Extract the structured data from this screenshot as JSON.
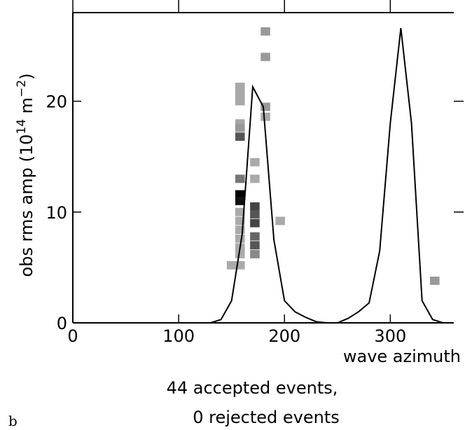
{
  "chart_data": {
    "type": "scatter",
    "title": "",
    "xlabel": "wave azimuth",
    "ylabel_main": "obs rms amp (10",
    "ylabel_exp": "14",
    "ylabel_unit": " m",
    "ylabel_unit_exp": "−2",
    "ylabel_close": ")",
    "xlim": [
      0,
      360
    ],
    "ylim": [
      0,
      28
    ],
    "x_ticks": [
      0,
      100,
      200,
      300
    ],
    "y_ticks": [
      0,
      10,
      20
    ],
    "x_tick_labels": [
      "0",
      "100",
      "200",
      "300"
    ],
    "y_tick_labels": [
      "0",
      "10",
      "20"
    ],
    "grid": false,
    "annotations": [
      "44 accepted events,",
      "0 rejected events"
    ],
    "panel_label": "b",
    "series": [
      {
        "type": "line",
        "x": [
          130,
          140,
          150,
          160,
          170,
          180,
          190,
          200,
          210,
          220,
          230,
          240,
          250,
          260,
          270,
          280,
          290,
          300,
          310,
          320,
          330,
          340,
          350
        ],
        "y": [
          0,
          0.3,
          2,
          8,
          21.3,
          19.5,
          7.5,
          2,
          1,
          0.5,
          0.1,
          0,
          0,
          0.4,
          1,
          1.8,
          6.5,
          18,
          26.6,
          18,
          2,
          0.3,
          0
        ]
      },
      {
        "type": "markers",
        "points": [
          {
            "x": 158,
            "y": 21.3,
            "shade": "#a8a8a8"
          },
          {
            "x": 158,
            "y": 20.6,
            "shade": "#a8a8a8"
          },
          {
            "x": 158,
            "y": 20.0,
            "shade": "#a8a8a8"
          },
          {
            "x": 158,
            "y": 18.0,
            "shade": "#a8a8a8"
          },
          {
            "x": 158,
            "y": 17.6,
            "shade": "#999999"
          },
          {
            "x": 158,
            "y": 16.8,
            "shade": "#555555"
          },
          {
            "x": 158,
            "y": 13.0,
            "shade": "#777777"
          },
          {
            "x": 158,
            "y": 11.6,
            "shade": "#000000"
          },
          {
            "x": 158,
            "y": 11.0,
            "shade": "#111111"
          },
          {
            "x": 158,
            "y": 10.0,
            "shade": "#aaaaaa"
          },
          {
            "x": 158,
            "y": 9.2,
            "shade": "#aaaaaa"
          },
          {
            "x": 158,
            "y": 8.4,
            "shade": "#aaaaaa"
          },
          {
            "x": 158,
            "y": 7.6,
            "shade": "#aaaaaa"
          },
          {
            "x": 158,
            "y": 6.8,
            "shade": "#aaaaaa"
          },
          {
            "x": 158,
            "y": 6.2,
            "shade": "#aaaaaa"
          },
          {
            "x": 150,
            "y": 5.2,
            "shade": "#aaaaaa"
          },
          {
            "x": 158,
            "y": 5.2,
            "shade": "#aaaaaa"
          },
          {
            "x": 172,
            "y": 14.5,
            "shade": "#aaaaaa"
          },
          {
            "x": 172,
            "y": 13.0,
            "shade": "#aaaaaa"
          },
          {
            "x": 172,
            "y": 10.5,
            "shade": "#444444"
          },
          {
            "x": 172,
            "y": 9.8,
            "shade": "#555555"
          },
          {
            "x": 172,
            "y": 9.0,
            "shade": "#444444"
          },
          {
            "x": 172,
            "y": 7.8,
            "shade": "#666666"
          },
          {
            "x": 172,
            "y": 7.0,
            "shade": "#555555"
          },
          {
            "x": 172,
            "y": 6.2,
            "shade": "#888888"
          },
          {
            "x": 182,
            "y": 26.3,
            "shade": "#999999"
          },
          {
            "x": 182,
            "y": 24.0,
            "shade": "#999999"
          },
          {
            "x": 182,
            "y": 19.5,
            "shade": "#999999"
          },
          {
            "x": 182,
            "y": 18.6,
            "shade": "#aaaaaa"
          },
          {
            "x": 196,
            "y": 9.2,
            "shade": "#aaaaaa"
          },
          {
            "x": 342,
            "y": 3.8,
            "shade": "#999999"
          }
        ]
      }
    ]
  }
}
